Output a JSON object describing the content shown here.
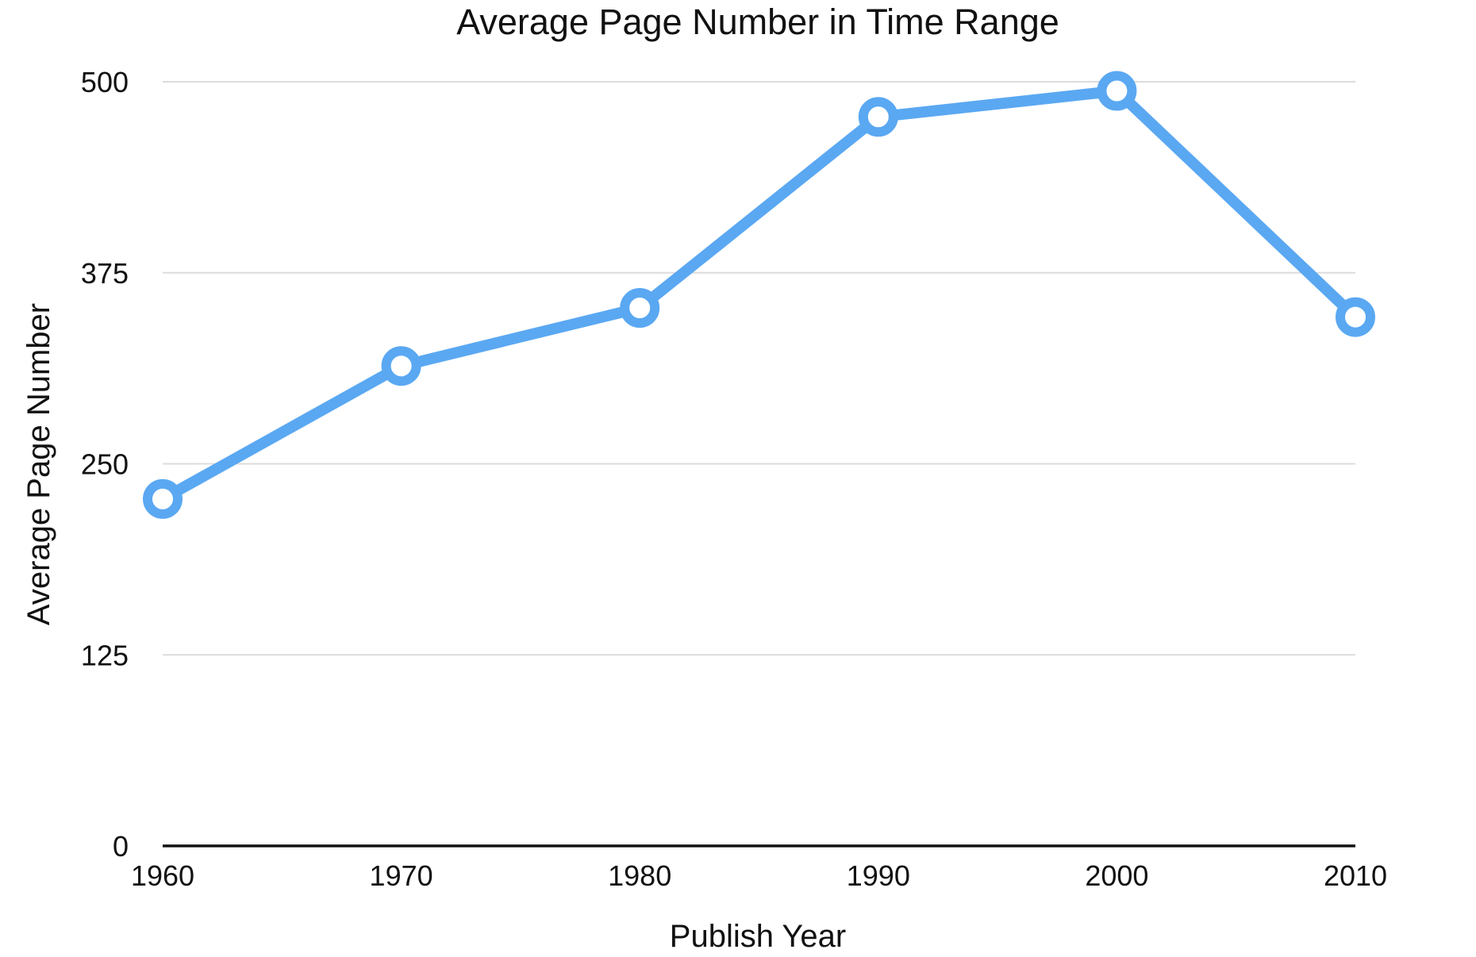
{
  "chart_data": {
    "type": "line",
    "title": "Average Page Number in Time Range",
    "xlabel": "Publish Year",
    "ylabel": "Average Page Number",
    "categories": [
      "1960",
      "1970",
      "1980",
      "1990",
      "2000",
      "2010"
    ],
    "series": [
      {
        "values": [
          227,
          314,
          352,
          477,
          494,
          346
        ],
        "color": "#5aa8f2"
      }
    ],
    "ylim": [
      0,
      500
    ],
    "yticks": [
      "0",
      "125",
      "250",
      "375",
      "500"
    ],
    "grid": true,
    "legend": "none"
  }
}
